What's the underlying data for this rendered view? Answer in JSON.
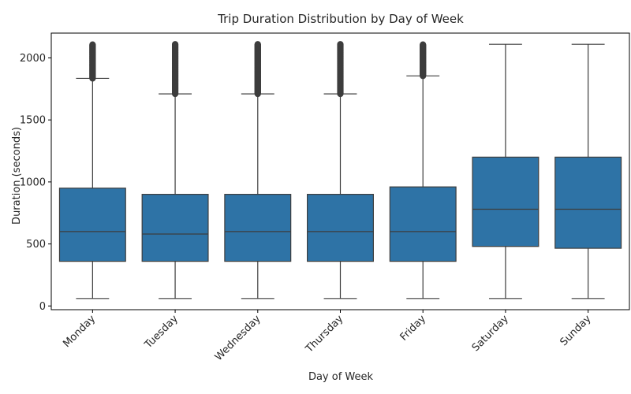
{
  "chart_data": {
    "type": "box",
    "title": "Trip Duration Distribution by Day of Week",
    "xlabel": "Day of Week",
    "ylabel": "Duration (seconds)",
    "ylim": [
      -30,
      2200
    ],
    "yticks": [
      0,
      500,
      1000,
      1500,
      2000
    ],
    "grid": false,
    "box_color": "#2e73a6",
    "line_color": "#3d3d3d",
    "categories": [
      "Monday",
      "Tuesday",
      "Wednesday",
      "Thursday",
      "Friday",
      "Saturday",
      "Sunday"
    ],
    "boxes": [
      {
        "whisker_low": 60,
        "q1": 360,
        "median": 600,
        "q3": 950,
        "whisker_high": 1835,
        "outliers_from": 1835,
        "outliers_to": 2110
      },
      {
        "whisker_low": 60,
        "q1": 360,
        "median": 580,
        "q3": 900,
        "whisker_high": 1710,
        "outliers_from": 1710,
        "outliers_to": 2110
      },
      {
        "whisker_low": 60,
        "q1": 360,
        "median": 600,
        "q3": 900,
        "whisker_high": 1710,
        "outliers_from": 1710,
        "outliers_to": 2110
      },
      {
        "whisker_low": 60,
        "q1": 360,
        "median": 600,
        "q3": 900,
        "whisker_high": 1710,
        "outliers_from": 1710,
        "outliers_to": 2110
      },
      {
        "whisker_low": 60,
        "q1": 360,
        "median": 600,
        "q3": 960,
        "whisker_high": 1855,
        "outliers_from": 1855,
        "outliers_to": 2110
      },
      {
        "whisker_low": 60,
        "q1": 480,
        "median": 780,
        "q3": 1200,
        "whisker_high": 2110,
        "outliers_from": null,
        "outliers_to": null
      },
      {
        "whisker_low": 60,
        "q1": 465,
        "median": 780,
        "q3": 1200,
        "whisker_high": 2110,
        "outliers_from": null,
        "outliers_to": null
      }
    ]
  }
}
